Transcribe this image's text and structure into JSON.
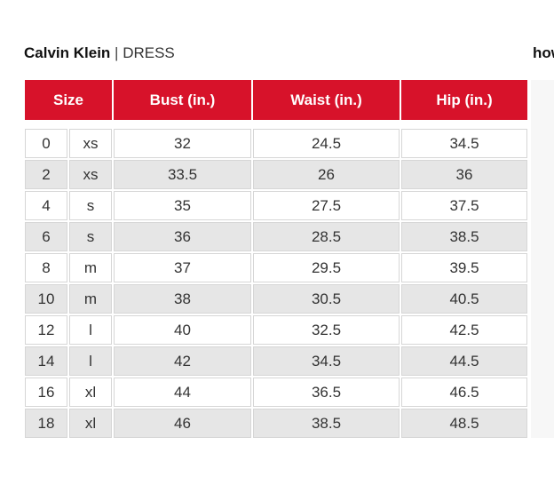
{
  "header": {
    "brand": "Calvin Klein",
    "separator": "|",
    "category": "DRESS",
    "cut_text": "how"
  },
  "table": {
    "columns": [
      "Size",
      "Bust (in.)",
      "Waist (in.)",
      "Hip (in.)"
    ],
    "rows": [
      {
        "num": "0",
        "letter": "xs",
        "bust": "32",
        "waist": "24.5",
        "hip": "34.5"
      },
      {
        "num": "2",
        "letter": "xs",
        "bust": "33.5",
        "waist": "26",
        "hip": "36"
      },
      {
        "num": "4",
        "letter": "s",
        "bust": "35",
        "waist": "27.5",
        "hip": "37.5"
      },
      {
        "num": "6",
        "letter": "s",
        "bust": "36",
        "waist": "28.5",
        "hip": "38.5"
      },
      {
        "num": "8",
        "letter": "m",
        "bust": "37",
        "waist": "29.5",
        "hip": "39.5"
      },
      {
        "num": "10",
        "letter": "m",
        "bust": "38",
        "waist": "30.5",
        "hip": "40.5"
      },
      {
        "num": "12",
        "letter": "l",
        "bust": "40",
        "waist": "32.5",
        "hip": "42.5"
      },
      {
        "num": "14",
        "letter": "l",
        "bust": "42",
        "waist": "34.5",
        "hip": "44.5"
      },
      {
        "num": "16",
        "letter": "xl",
        "bust": "44",
        "waist": "36.5",
        "hip": "46.5"
      },
      {
        "num": "18",
        "letter": "xl",
        "bust": "46",
        "waist": "38.5",
        "hip": "48.5"
      }
    ]
  },
  "colors": {
    "header_red": "#d7122a",
    "row_shade": "#e6e6e6",
    "border": "#d6d6d6"
  }
}
